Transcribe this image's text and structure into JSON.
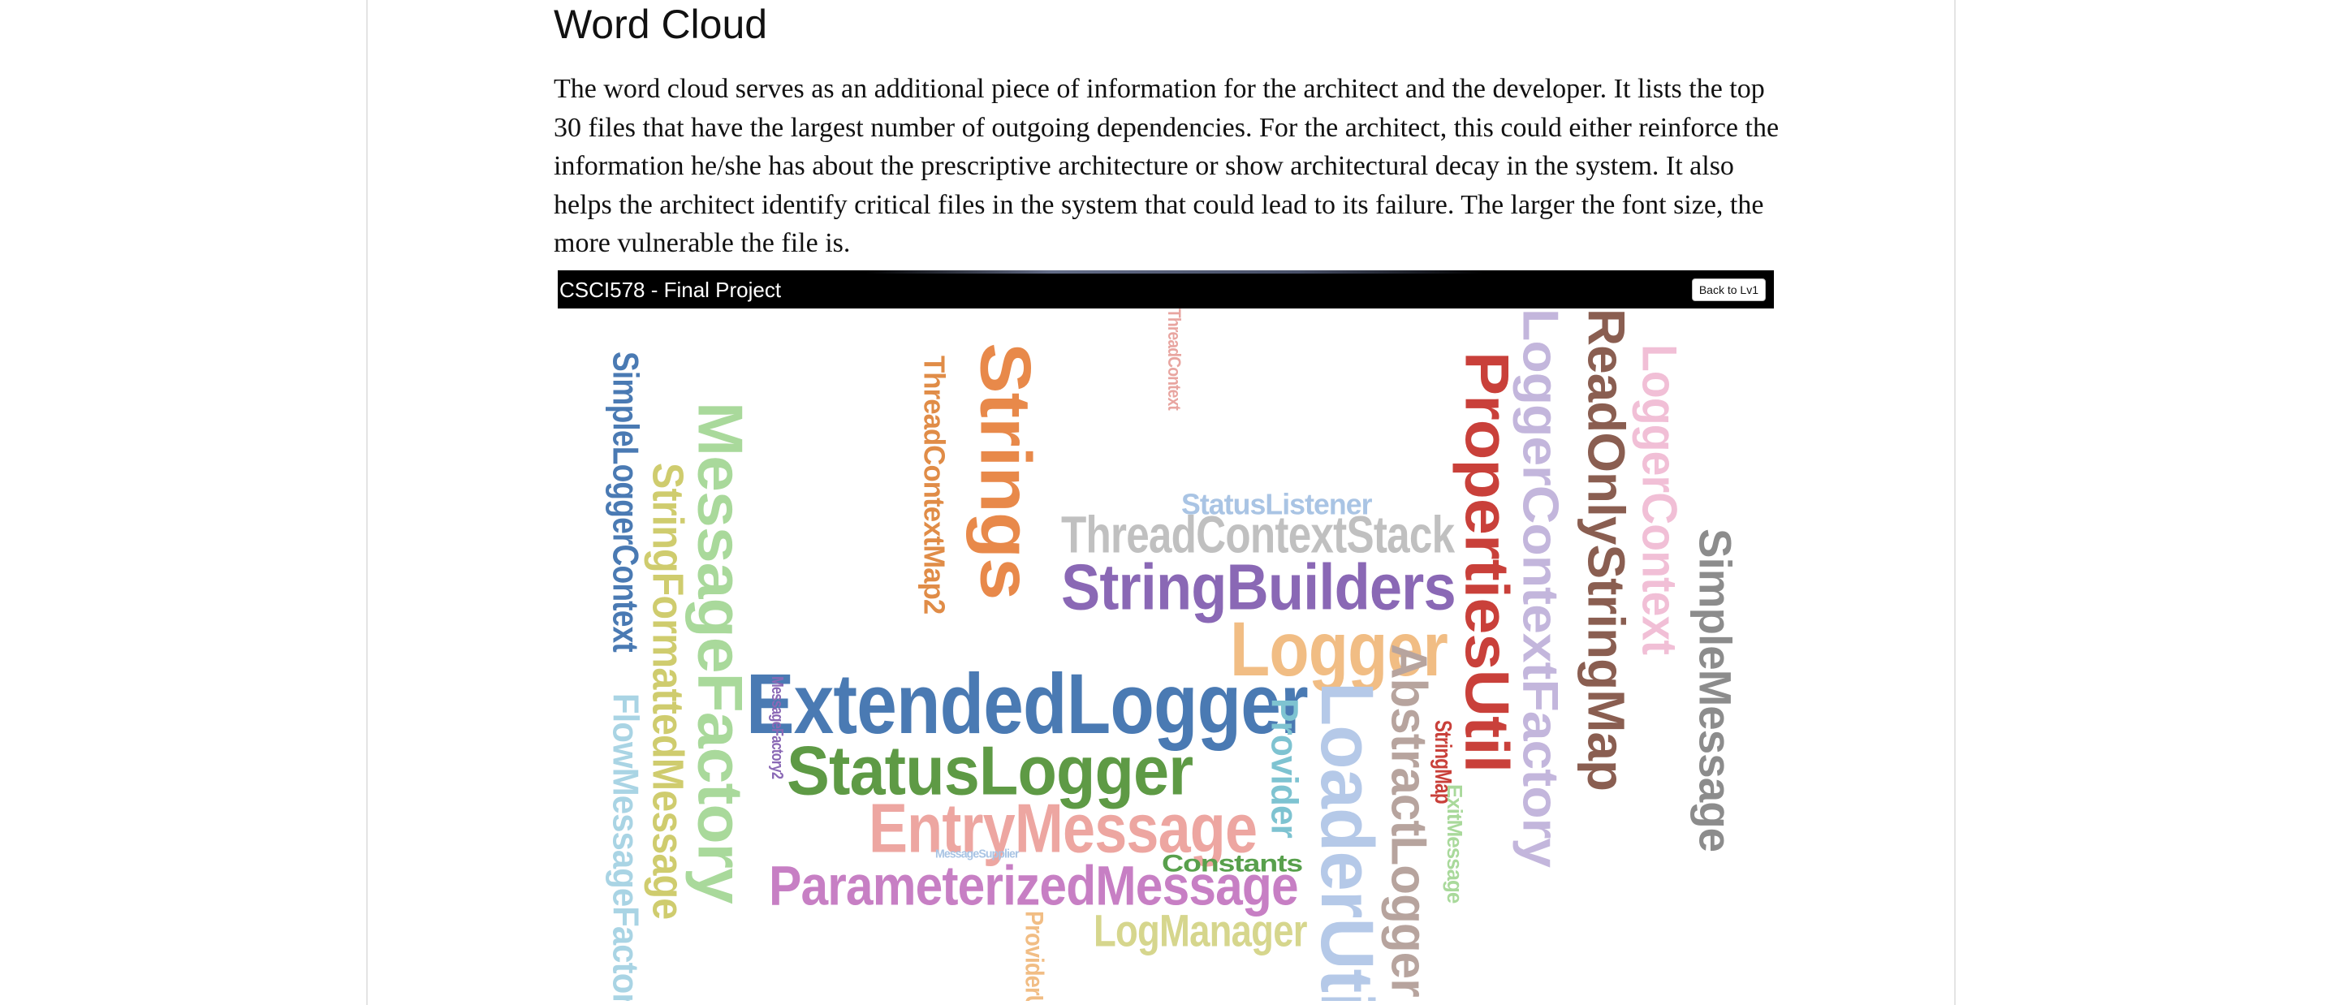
{
  "article": {
    "heading": "Word Cloud",
    "paragraph": "The word cloud serves as an additional piece of information for the architect and the developer. It lists the top 30 files that have the largest number of outgoing dependencies. For the architect, this could either reinforce the information he/she has about the prescriptive architecture or show architectural decay in the system. It also helps the architect identify critical files in the system that could lead to its failure. The larger the font size, the more vulnerable the file is."
  },
  "app": {
    "title": "CSCI578 - Final Project",
    "back_button_label": "Back to Lv1"
  },
  "word_cloud": [
    {
      "text": "ExtendedLogger",
      "color": "#4a7ab3",
      "orientation": "horizontal"
    },
    {
      "text": "StatusLogger",
      "color": "#5e9a45",
      "orientation": "horizontal"
    },
    {
      "text": "StringBuilders",
      "color": "#8a68b5",
      "orientation": "horizontal"
    },
    {
      "text": "Logger",
      "color": "#f1bd84",
      "orientation": "horizontal"
    },
    {
      "text": "ThreadContextStack",
      "color": "#c0c0c0",
      "orientation": "horizontal"
    },
    {
      "text": "StatusListener",
      "color": "#a9c4e4",
      "orientation": "horizontal"
    },
    {
      "text": "EntryMessage",
      "color": "#eda6a1",
      "orientation": "horizontal"
    },
    {
      "text": "ParameterizedMessage",
      "color": "#c77fc4",
      "orientation": "horizontal"
    },
    {
      "text": "Constants",
      "color": "#58a04c",
      "orientation": "horizontal"
    },
    {
      "text": "LogManager",
      "color": "#d6d68d",
      "orientation": "horizontal"
    },
    {
      "text": "MessageSupplier",
      "color": "#a9c4e4",
      "orientation": "horizontal"
    },
    {
      "text": "SimpleLoggerContext",
      "color": "#4a7ab3",
      "orientation": "vertical"
    },
    {
      "text": "FlowMessageFactory",
      "color": "#a9d4e4",
      "orientation": "vertical"
    },
    {
      "text": "MessageFactory",
      "color": "#a9d99b",
      "orientation": "vertical"
    },
    {
      "text": "StringFormattedMessage",
      "color": "#cfcc6e",
      "orientation": "vertical"
    },
    {
      "text": "ThreadContextMap2",
      "color": "#e08c47",
      "orientation": "vertical"
    },
    {
      "text": "Strings",
      "color": "#e8894a",
      "orientation": "vertical"
    },
    {
      "text": "ThreadContext",
      "color": "#e8a5a0",
      "orientation": "vertical"
    },
    {
      "text": "MessageFactory2",
      "color": "#8a68b5",
      "orientation": "vertical"
    },
    {
      "text": "ProviderUtil",
      "color": "#f1bd84",
      "orientation": "vertical"
    },
    {
      "text": "Provider",
      "color": "#7ec3d1",
      "orientation": "vertical"
    },
    {
      "text": "LoaderUtil",
      "color": "#b5c9e8",
      "orientation": "vertical"
    },
    {
      "text": "AbstractLogger",
      "color": "#b7a49e",
      "orientation": "vertical"
    },
    {
      "text": "StringMap",
      "color": "#c9403a",
      "orientation": "vertical"
    },
    {
      "text": "ExitMessage",
      "color": "#a9d99b",
      "orientation": "vertical"
    },
    {
      "text": "PropertiesUtil",
      "color": "#c9403a",
      "orientation": "vertical"
    },
    {
      "text": "LoggerContextFactory",
      "color": "#c3b6dc",
      "orientation": "vertical"
    },
    {
      "text": "ReadOnlyStringMap",
      "color": "#8a5e51",
      "orientation": "vertical"
    },
    {
      "text": "LoggerContext",
      "color": "#f1bfd6",
      "orientation": "vertical"
    },
    {
      "text": "SimpleMessage",
      "color": "#8c8c8c",
      "orientation": "vertical"
    }
  ]
}
